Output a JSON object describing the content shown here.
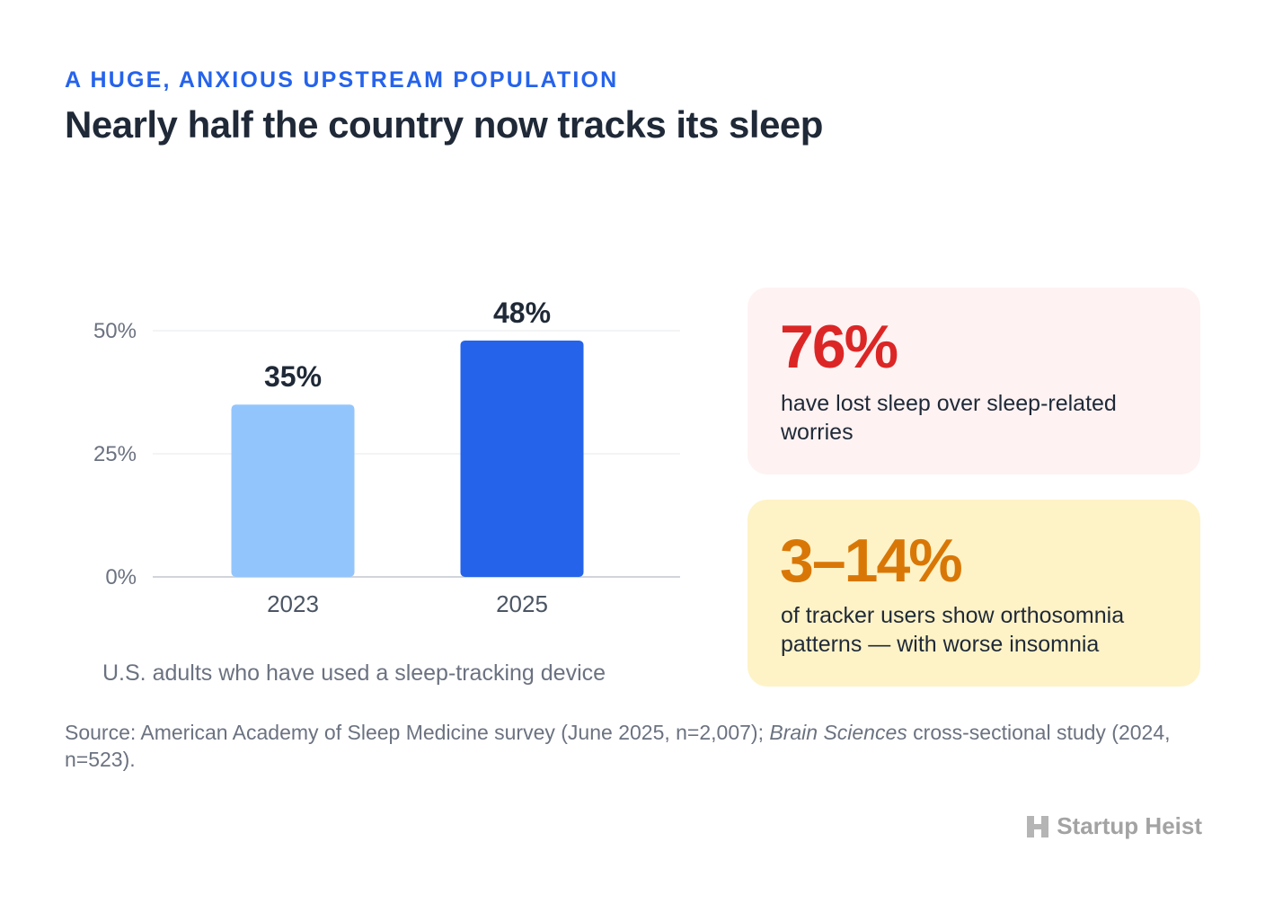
{
  "eyebrow": "A HUGE, ANXIOUS UPSTREAM POPULATION",
  "title": "Nearly half the country now tracks its sleep",
  "chart_data": {
    "type": "bar",
    "categories": [
      "2023",
      "2025"
    ],
    "values": [
      35,
      48
    ],
    "value_labels": [
      "35%",
      "48%"
    ],
    "bar_colors": [
      "#93c5fd",
      "#2563eb"
    ],
    "ylim": [
      0,
      50
    ],
    "yticks": [
      0,
      25,
      50
    ],
    "ytick_labels": [
      "0%",
      "25%",
      "50%"
    ],
    "grid": true,
    "caption": "U.S. adults who have used a sleep-tracking device"
  },
  "stats": [
    {
      "value": "76%",
      "description": "have lost sleep over sleep-related worries",
      "color": "#dc2626",
      "background": "#fef2f2"
    },
    {
      "value": "3–14%",
      "description": "of tracker users show orthosomnia patterns — with worse insomnia",
      "color": "#d97706",
      "background": "#fef3c7"
    }
  ],
  "source": {
    "prefix": "Source: American Academy of Sleep Medicine survey (June 2025, n=2,007); ",
    "journal": "Brain Sciences",
    "suffix": " cross-sectional study (2024, n=523)."
  },
  "brand": {
    "name": "Startup Heist",
    "icon": "h-logo-icon"
  }
}
